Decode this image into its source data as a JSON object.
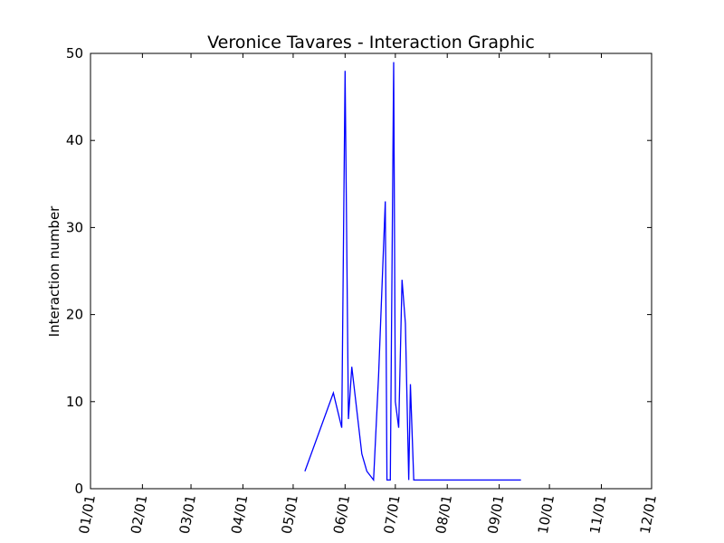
{
  "chart_data": {
    "type": "line",
    "title": "Veronice Tavares - Interaction Graphic",
    "xlabel": "",
    "ylabel": "Interaction number",
    "xlim": [
      "01/01",
      "12/01"
    ],
    "ylim": [
      0,
      50
    ],
    "x_ticks": [
      "01/01",
      "02/01",
      "03/01",
      "04/01",
      "05/01",
      "06/01",
      "07/01",
      "08/01",
      "09/01",
      "10/01",
      "11/01",
      "12/01"
    ],
    "y_ticks": [
      0,
      10,
      20,
      30,
      40,
      50
    ],
    "grid": false,
    "line_color": "#0000ff",
    "series": [
      {
        "x": [
          "05/08",
          "05/25",
          "05/30",
          "06/01",
          "06/03",
          "06/05",
          "06/11",
          "06/14",
          "06/18",
          "06/21",
          "06/25",
          "06/26",
          "06/28",
          "06/30",
          "07/01",
          "07/03",
          "07/05",
          "07/07",
          "07/09",
          "07/10",
          "07/12",
          "07/13",
          "09/14"
        ],
        "y": [
          2,
          11,
          7,
          48,
          8,
          14,
          4,
          2,
          1,
          13,
          33,
          1,
          1,
          49,
          10,
          7,
          24,
          19,
          1,
          12,
          1,
          1,
          1
        ]
      }
    ]
  }
}
